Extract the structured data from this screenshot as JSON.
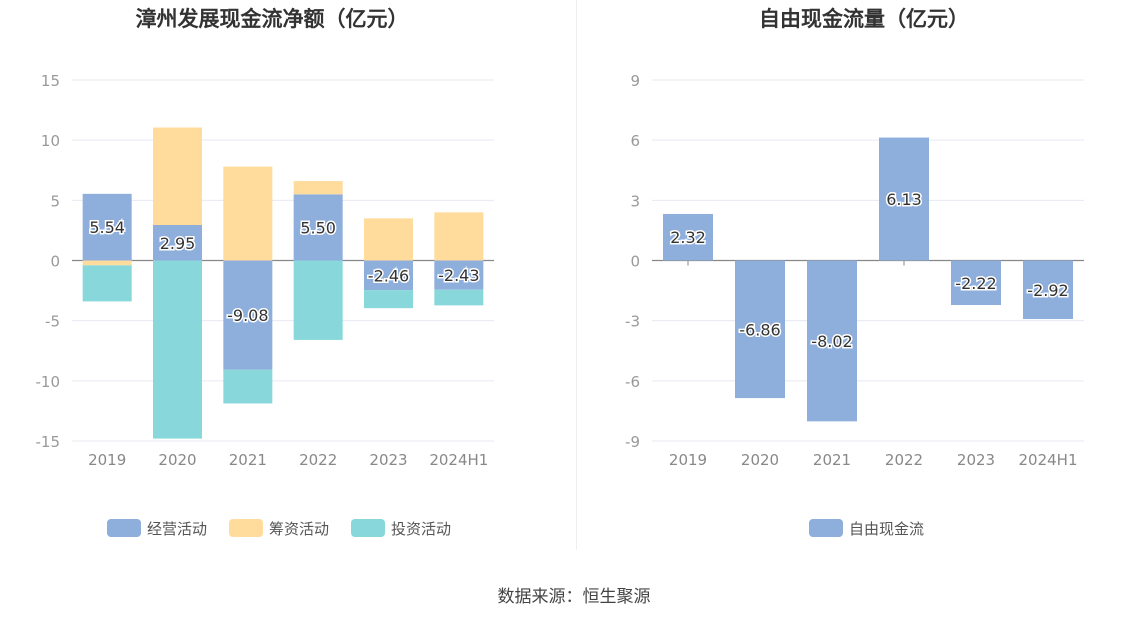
{
  "source_text": "数据来源：恒生聚源",
  "chart_data": [
    {
      "type": "bar",
      "stacked": true,
      "title": "漳州发展现金流净额（亿元）",
      "categories": [
        "2019",
        "2020",
        "2021",
        "2022",
        "2023",
        "2024H1"
      ],
      "ylim": [
        -15,
        15
      ],
      "yticks": [
        15,
        10,
        5,
        0,
        -5,
        -10,
        -15
      ],
      "grid": true,
      "legend_position": "bottom",
      "series": [
        {
          "name": "经营活动",
          "color": "#8eaedc",
          "labeled": true,
          "values": [
            5.54,
            2.95,
            -9.08,
            5.5,
            -2.46,
            -2.43
          ]
        },
        {
          "name": "筹资活动",
          "color": "#ffdb9c",
          "labeled": false,
          "values": [
            -0.4,
            8.1,
            7.8,
            1.1,
            3.5,
            4.0
          ]
        },
        {
          "name": "投资活动",
          "color": "#88d8db",
          "labeled": false,
          "values": [
            -3.0,
            -14.8,
            -2.8,
            -6.6,
            -1.5,
            -1.3
          ]
        }
      ]
    },
    {
      "type": "bar",
      "title": "自由现金流量（亿元）",
      "categories": [
        "2019",
        "2020",
        "2021",
        "2022",
        "2023",
        "2024H1"
      ],
      "ylim": [
        -9,
        9
      ],
      "yticks": [
        9,
        6,
        3,
        0,
        -3,
        -6,
        -9
      ],
      "grid": true,
      "legend_position": "bottom",
      "series": [
        {
          "name": "自由现金流",
          "color": "#8eaedc",
          "labeled": true,
          "values": [
            2.32,
            -6.86,
            -8.02,
            6.13,
            -2.22,
            -2.92
          ]
        }
      ]
    }
  ]
}
